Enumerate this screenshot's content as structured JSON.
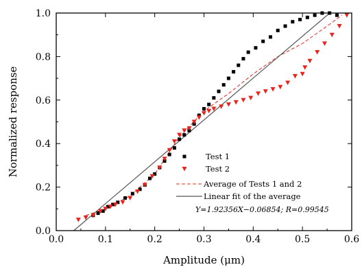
{
  "chart_data": {
    "type": "scatter",
    "xlabel": "Amplitude (μm)",
    "ylabel": "Normalized response",
    "xlim": [
      0.0,
      0.6
    ],
    "ylim": [
      0.0,
      1.0
    ],
    "xticks": [
      "0.0",
      "0.1",
      "0.2",
      "0.3",
      "0.4",
      "0.5",
      "0.6"
    ],
    "yticks": [
      "0.0",
      "0.2",
      "0.4",
      "0.6",
      "0.8",
      "1.0"
    ],
    "grid": false,
    "legend_position": "bottom-right",
    "series": [
      {
        "name": "Test 1",
        "marker": "square",
        "color": "#000000",
        "points": [
          [
            0.075,
            0.07
          ],
          [
            0.085,
            0.08
          ],
          [
            0.095,
            0.09
          ],
          [
            0.105,
            0.11
          ],
          [
            0.115,
            0.12
          ],
          [
            0.125,
            0.13
          ],
          [
            0.14,
            0.15
          ],
          [
            0.155,
            0.17
          ],
          [
            0.17,
            0.19
          ],
          [
            0.18,
            0.21
          ],
          [
            0.19,
            0.24
          ],
          [
            0.2,
            0.26
          ],
          [
            0.21,
            0.29
          ],
          [
            0.22,
            0.32
          ],
          [
            0.23,
            0.35
          ],
          [
            0.24,
            0.38
          ],
          [
            0.25,
            0.42
          ],
          [
            0.26,
            0.44
          ],
          [
            0.27,
            0.46
          ],
          [
            0.28,
            0.49
          ],
          [
            0.29,
            0.53
          ],
          [
            0.3,
            0.56
          ],
          [
            0.31,
            0.58
          ],
          [
            0.32,
            0.61
          ],
          [
            0.33,
            0.64
          ],
          [
            0.34,
            0.67
          ],
          [
            0.35,
            0.7
          ],
          [
            0.36,
            0.73
          ],
          [
            0.37,
            0.76
          ],
          [
            0.38,
            0.79
          ],
          [
            0.39,
            0.82
          ],
          [
            0.405,
            0.84
          ],
          [
            0.42,
            0.87
          ],
          [
            0.435,
            0.89
          ],
          [
            0.45,
            0.92
          ],
          [
            0.465,
            0.94
          ],
          [
            0.48,
            0.96
          ],
          [
            0.495,
            0.97
          ],
          [
            0.51,
            0.98
          ],
          [
            0.525,
            0.99
          ],
          [
            0.54,
            1.0
          ],
          [
            0.555,
            1.0
          ],
          [
            0.57,
            0.99
          ]
        ]
      },
      {
        "name": "Test 2",
        "marker": "triangle-down",
        "color": "#e8251c",
        "points": [
          [
            0.045,
            0.05
          ],
          [
            0.06,
            0.06
          ],
          [
            0.075,
            0.07
          ],
          [
            0.09,
            0.09
          ],
          [
            0.1,
            0.1
          ],
          [
            0.11,
            0.11
          ],
          [
            0.12,
            0.12
          ],
          [
            0.135,
            0.13
          ],
          [
            0.15,
            0.15
          ],
          [
            0.165,
            0.18
          ],
          [
            0.18,
            0.21
          ],
          [
            0.195,
            0.25
          ],
          [
            0.21,
            0.29
          ],
          [
            0.22,
            0.33
          ],
          [
            0.23,
            0.37
          ],
          [
            0.24,
            0.41
          ],
          [
            0.25,
            0.44
          ],
          [
            0.26,
            0.46
          ],
          [
            0.27,
            0.47
          ],
          [
            0.28,
            0.5
          ],
          [
            0.29,
            0.52
          ],
          [
            0.3,
            0.54
          ],
          [
            0.31,
            0.55
          ],
          [
            0.32,
            0.56
          ],
          [
            0.335,
            0.57
          ],
          [
            0.35,
            0.58
          ],
          [
            0.365,
            0.59
          ],
          [
            0.38,
            0.6
          ],
          [
            0.395,
            0.61
          ],
          [
            0.41,
            0.63
          ],
          [
            0.425,
            0.64
          ],
          [
            0.44,
            0.65
          ],
          [
            0.455,
            0.66
          ],
          [
            0.47,
            0.68
          ],
          [
            0.485,
            0.71
          ],
          [
            0.5,
            0.72
          ],
          [
            0.505,
            0.75
          ],
          [
            0.515,
            0.78
          ],
          [
            0.53,
            0.82
          ],
          [
            0.545,
            0.86
          ],
          [
            0.56,
            0.9
          ],
          [
            0.575,
            0.94
          ],
          [
            0.59,
            0.99
          ]
        ]
      },
      {
        "name": "Average of Tests 1 and 2",
        "style": "dashed",
        "color": "#e8251c",
        "points": [
          [
            0.06,
            0.07
          ],
          [
            0.1,
            0.1
          ],
          [
            0.15,
            0.16
          ],
          [
            0.2,
            0.26
          ],
          [
            0.25,
            0.43
          ],
          [
            0.3,
            0.55
          ],
          [
            0.35,
            0.63
          ],
          [
            0.4,
            0.72
          ],
          [
            0.45,
            0.8
          ],
          [
            0.5,
            0.86
          ],
          [
            0.55,
            0.94
          ],
          [
            0.58,
            0.99
          ]
        ]
      },
      {
        "name": "Linear fit of the average",
        "style": "solid",
        "color": "#555555",
        "points": [
          [
            0.0356,
            0.0
          ],
          [
            0.5554,
            1.0
          ]
        ]
      }
    ],
    "annotation": "Y=1.92356X−0.06854; R=0.99545"
  }
}
